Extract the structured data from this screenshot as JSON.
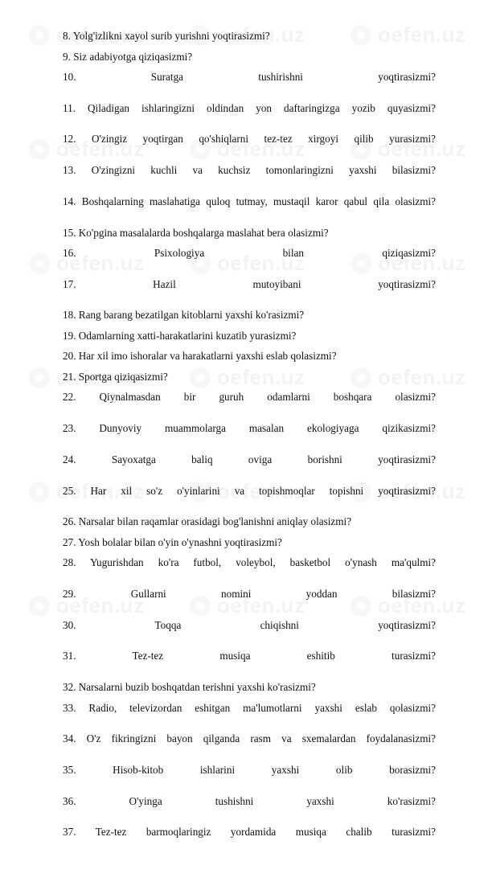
{
  "watermark": {
    "text": "oefen.uz"
  },
  "lines": [
    {
      "n": "8.",
      "text": "Yolg'izlikni xayol surib yurishni yoqtirasizmi?",
      "justify": false
    },
    {
      "n": "9.",
      "text": "Siz adabiyotga qiziqasizmi?",
      "justify": false
    },
    {
      "n": "10.",
      "text": "Suratga tushirishni yoqtirasizmi?",
      "justify": true
    },
    {
      "n": "11.",
      "text": "Qiladigan ishlaringizni oldindan yon daftaringizga yozib quyasizmi?",
      "justify": true
    },
    {
      "n": "12.",
      "text": "O'zingiz yoqtirgan qo'shiqlarni tez-tez xirgoyi qilib yurasizmi?",
      "justify": true
    },
    {
      "n": "13.",
      "text": "O'zingizni kuchli va kuchsiz tomonlaringizni yaxshi bilasizmi?",
      "justify": true
    },
    {
      "n": "14.",
      "text": "Boshqalarning maslahatiga quloq tutmay, mustaqil karor qabul qila olasizmi?",
      "justify": true
    },
    {
      "n": "15.",
      "text": "Ko'pgina masalalarda boshqalarga maslahat bera olasizmi?",
      "justify": false
    },
    {
      "n": "16.",
      "text": "Psixologiya bilan qiziqasizmi?",
      "justify": true
    },
    {
      "n": "17.",
      "text": "Hazil mutoyibani yoqtirasizmi?",
      "justify": true
    },
    {
      "n": "18.",
      "text": "Rang barang bezatilgan kitoblarni yaxshi ko'rasizmi?",
      "justify": false
    },
    {
      "n": "19.",
      "text": "Odamlarning xatti-harakatlarini kuzatib yurasizmi?",
      "justify": false
    },
    {
      "n": "20.",
      "text": "Har xil imo ishoralar va harakatlarni yaxshi eslab qolasizmi?",
      "justify": false
    },
    {
      "n": "21.",
      "text": "Sportga qiziqasizmi?",
      "justify": false
    },
    {
      "n": "22.",
      "text": "Qiynalmasdan bir guruh odamlarni boshqara olasizmi?",
      "justify": true
    },
    {
      "n": "23.",
      "text": "Dunyoviy muammolarga masalan ekologiyaga qizikasizmi?",
      "justify": true
    },
    {
      "n": "24.",
      "text": "Sayoxatga baliq oviga borishni yoqtirasizmi?",
      "justify": true
    },
    {
      "n": "25.",
      "text": "Har xil so'z o'yinlarini va topishmoqlar topishni yoqtirasizmi?",
      "justify": true
    },
    {
      "n": "26.",
      "text": "Narsalar bilan raqamlar orasidagi bog'lanishni aniqlay olasizmi?",
      "justify": false
    },
    {
      "n": "27.",
      "text": "Yosh bolalar bilan o'yin o'ynashni yoqtirasizmi?",
      "justify": false
    },
    {
      "n": "28.",
      "text": "Yugurishdan ko'ra futbol, voleybol, basketbol o'ynash ma'qulmi?",
      "justify": true
    },
    {
      "n": "29.",
      "text": "Gullarni nomini yoddan bilasizmi?",
      "justify": true
    },
    {
      "n": "30.",
      "text": "Toqqa chiqishni yoqtirasizmi?",
      "justify": true
    },
    {
      "n": "31.",
      "text": "Tez-tez musiqa eshitib turasizmi?",
      "justify": true
    },
    {
      "n": "32.",
      "text": "Narsalarni buzib boshqatdan terishni yaxshi ko'rasizmi?",
      "justify": false
    },
    {
      "n": "33.",
      "text": "Radio, televizordan eshitgan ma'lumotlarni yaxshi eslab qolasizmi?",
      "justify": true
    },
    {
      "n": "34.",
      "text": "O'z fikringizni bayon qilganda rasm va sxemalardan foydalanasizmi?",
      "justify": true
    },
    {
      "n": "35.",
      "text": "Hisob-kitob ishlarini yaxshi olib borasizmi?",
      "justify": true
    },
    {
      "n": "36.",
      "text": "O'yinga tushishni yaxshi ko'rasizmi?",
      "justify": true
    },
    {
      "n": "37.",
      "text": "Tez-tez barmoqlaringiz yordamida musiqa chalib turasizmi?",
      "justify": true
    }
  ]
}
